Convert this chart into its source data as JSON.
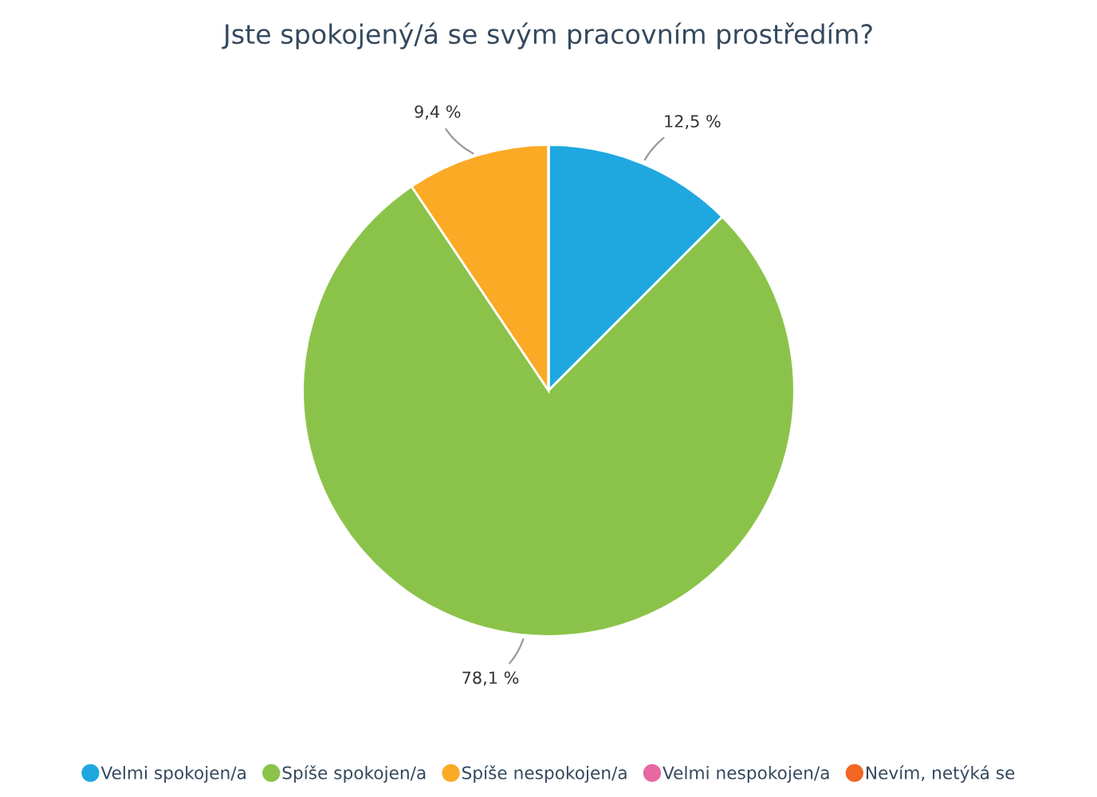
{
  "chart_data": {
    "type": "pie",
    "title": "Jste spokojený/á se svým pracovním prostředím?",
    "categories": [
      "Velmi spokojen/a",
      "Spíše spokojen/a",
      "Spíše nespokojen/a",
      "Velmi nespokojen/a",
      "Nevím, netýká se"
    ],
    "values": [
      12.5,
      78.1,
      9.4,
      0,
      0
    ],
    "colors": [
      "#1fa8e0",
      "#8bc34a",
      "#fbaa25",
      "#e868a2",
      "#f26522"
    ],
    "value_labels": [
      "12,5 %",
      "78,1 %",
      "9,4 %",
      null,
      null
    ],
    "legend": "bottom"
  }
}
